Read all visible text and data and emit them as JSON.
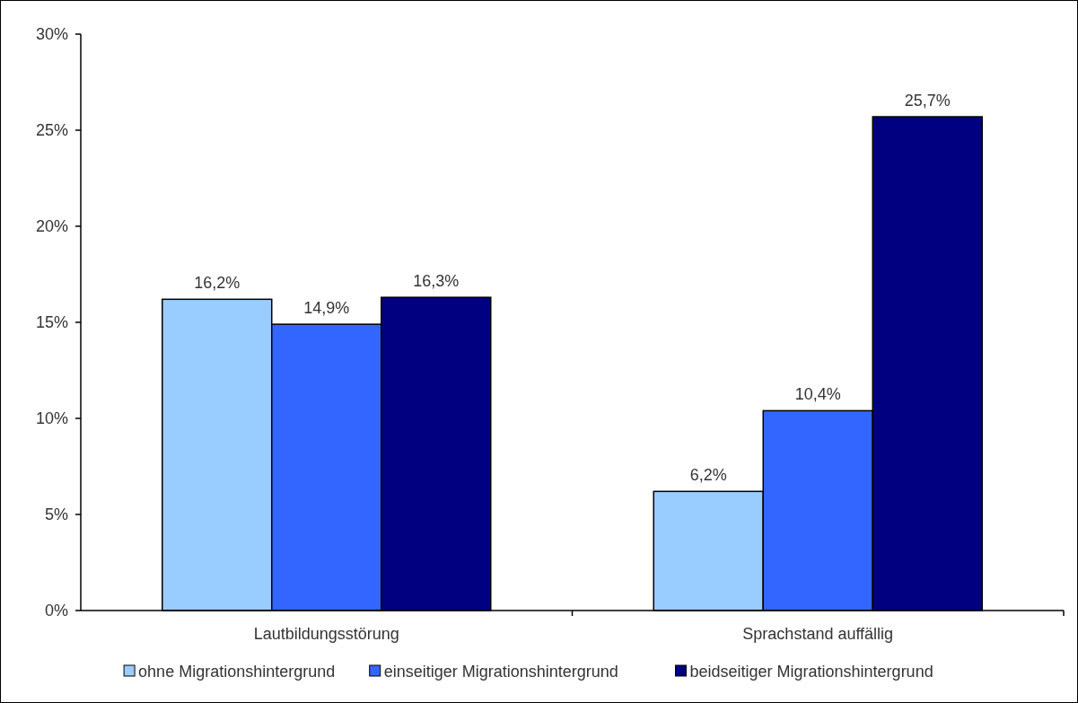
{
  "chart_data": {
    "type": "bar",
    "categories": [
      "Lautbildungsstörung",
      "Sprachstand auffällig"
    ],
    "series": [
      {
        "name": "ohne Migrationshintergrund",
        "color": "#99ccff",
        "values": [
          16.2,
          6.2
        ],
        "value_labels": [
          "16,2%",
          "6,2%"
        ]
      },
      {
        "name": "einseitiger Migrationshintergrund",
        "color": "#3366ff",
        "values": [
          14.9,
          10.4
        ],
        "value_labels": [
          "14,9%",
          "10,4%"
        ]
      },
      {
        "name": "beidseitiger Migrationshintergrund",
        "color": "#000080",
        "values": [
          16.3,
          25.7
        ],
        "value_labels": [
          "16,3%",
          "25,7%"
        ]
      }
    ],
    "ylim": [
      0,
      30
    ],
    "yticks": [
      {
        "value": 0,
        "label": "0%"
      },
      {
        "value": 5,
        "label": "5%"
      },
      {
        "value": 10,
        "label": "10%"
      },
      {
        "value": 15,
        "label": "15%"
      },
      {
        "value": 20,
        "label": "20%"
      },
      {
        "value": 25,
        "label": "25%"
      },
      {
        "value": 30,
        "label": "30%"
      }
    ],
    "grid": false,
    "legend": "bottom"
  }
}
